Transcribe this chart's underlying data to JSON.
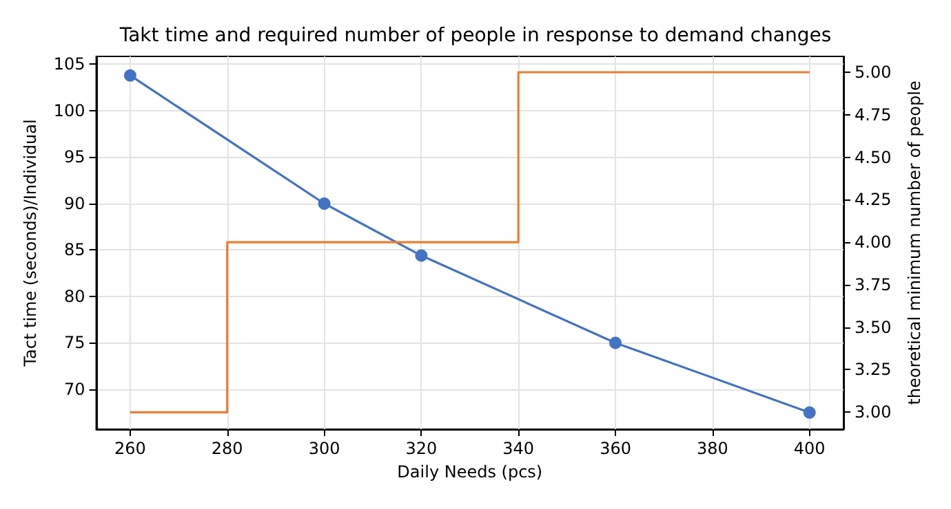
{
  "chart_data": {
    "type": "line",
    "title": "Takt time and required number of people in response to demand changes",
    "xlabel": "Daily Needs (pcs)",
    "ylabel": "Tact time (seconds)/Individual",
    "y2label": "theoretical minimum number of people",
    "series": [
      {
        "type": "line",
        "color": "#4472c4",
        "marker": "circle",
        "x": [
          260,
          300,
          320,
          360,
          400
        ],
        "values": [
          103.8,
          90,
          84.4,
          75,
          67.5
        ]
      },
      {
        "type": "step",
        "color": "#ed7d31",
        "axis": "y2",
        "x": [
          260,
          280,
          300,
          320,
          340,
          360,
          380,
          400
        ],
        "values": [
          3,
          4,
          4,
          4,
          5,
          5,
          5,
          5
        ]
      }
    ],
    "xlim": [
      253,
      407
    ],
    "xticks": [
      260,
      280,
      300,
      320,
      340,
      360,
      380,
      400
    ],
    "ylim": [
      65.7,
      105.85
    ],
    "yticks": [
      70,
      75,
      80,
      85,
      90,
      95,
      100,
      105
    ],
    "y2lim": [
      2.9,
      5.093
    ],
    "y2ticks": [
      {
        "value": 3,
        "label": "3.00"
      },
      {
        "value": 3.25,
        "label": "3.25"
      },
      {
        "value": 3.5,
        "label": "3.50"
      },
      {
        "value": 3.75,
        "label": "3.75"
      },
      {
        "value": 4,
        "label": "4.00"
      },
      {
        "value": 4.25,
        "label": "4.25"
      },
      {
        "value": 4.5,
        "label": "4.50"
      },
      {
        "value": 4.75,
        "label": "4.75"
      },
      {
        "value": 5,
        "label": "5.00"
      }
    ],
    "grid": true
  }
}
